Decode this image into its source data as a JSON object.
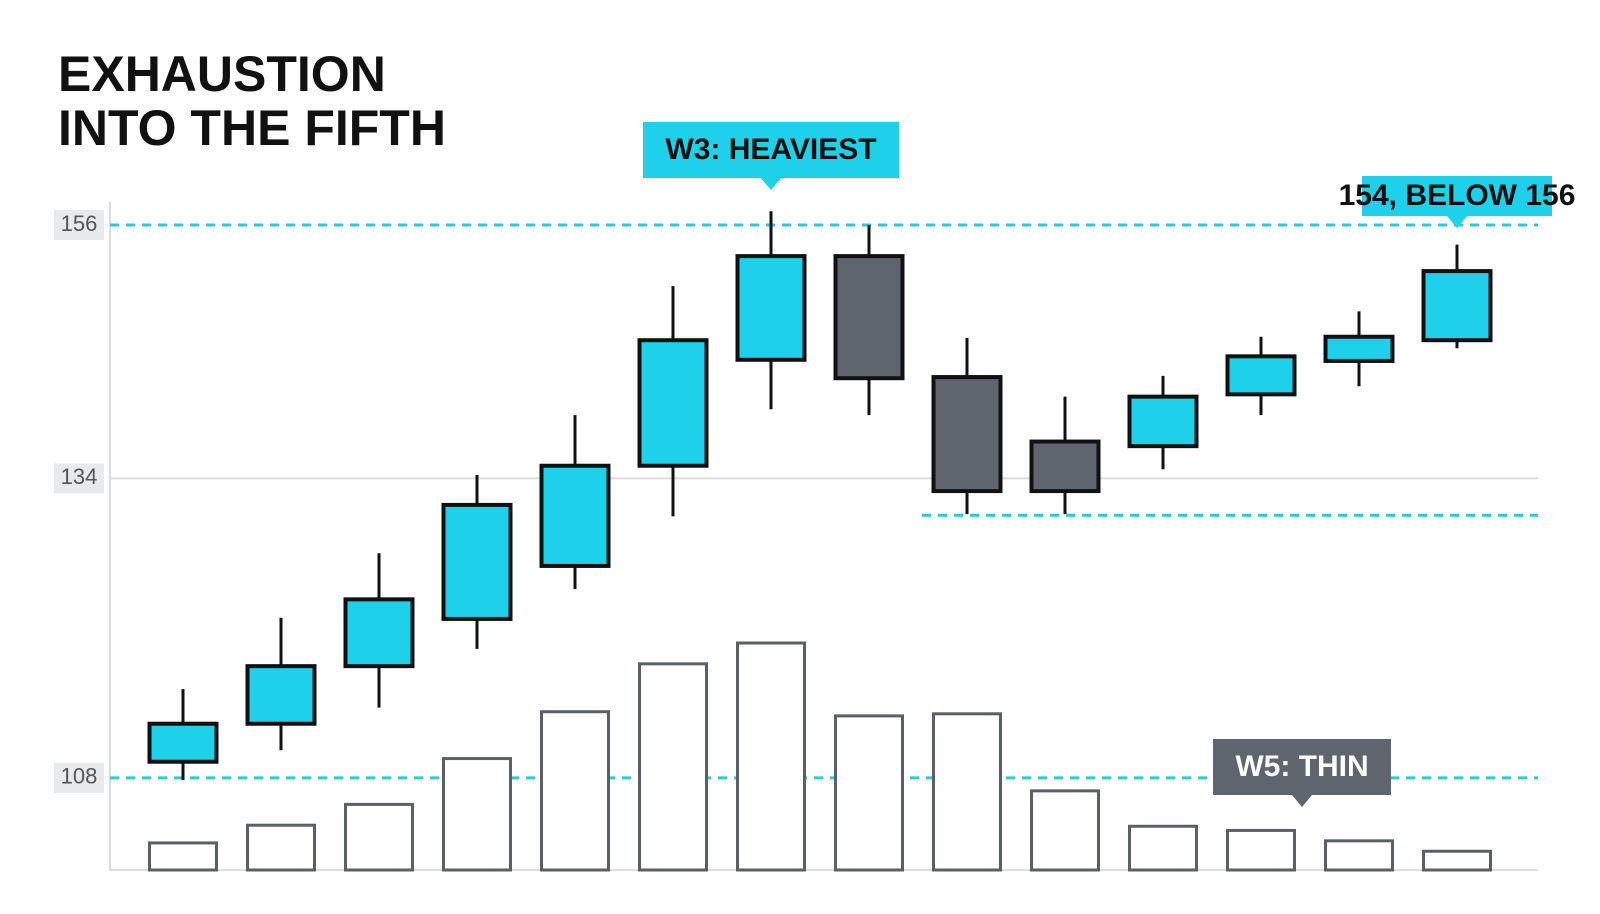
{
  "chart_data": {
    "type": "candlestick",
    "title": [
      "EXHAUSTION",
      "INTO THE FIFTH"
    ],
    "open": [
      109.4,
      112.7,
      117.7,
      121.8,
      126.4,
      135.1,
      144.3,
      153.3,
      142.8,
      137.2,
      136.8,
      141.3,
      144.2,
      146.0
    ],
    "high": [
      115.7,
      121.9,
      127.5,
      134.3,
      139.5,
      150.7,
      157.2,
      156.0,
      146.2,
      141.1,
      142.9,
      146.3,
      148.5,
      154.3
    ],
    "low": [
      107.8,
      110.4,
      114.1,
      119.2,
      124.4,
      130.7,
      140.0,
      139.5,
      130.9,
      130.9,
      134.8,
      139.5,
      142.0,
      145.3
    ],
    "close": [
      112.7,
      117.7,
      123.5,
      131.7,
      135.1,
      146.0,
      153.3,
      142.7,
      132.9,
      132.9,
      141.1,
      144.6,
      146.3,
      152.0
    ],
    "volume": [
      26,
      43,
      63,
      107,
      152,
      198,
      218,
      148,
      150,
      76,
      42,
      38,
      28,
      18
    ],
    "up_color": "#1fd0ea",
    "down_color": "#5f656e",
    "ylim": [
      100,
      158
    ],
    "yticks": [
      156,
      134,
      108
    ],
    "levels": [
      156,
      108
    ],
    "support_level": 130.8,
    "annotations": [
      "W3: HEAVIEST",
      "154, BELOW 156",
      "W5: THIN"
    ]
  }
}
